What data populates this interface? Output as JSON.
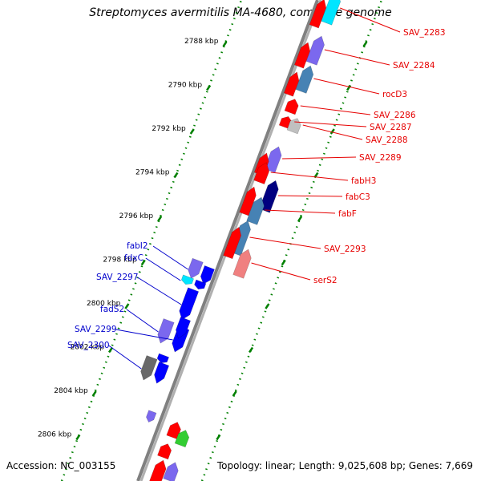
{
  "title": "Streptomyces avermitilis MA-4680, complete genome",
  "footer": {
    "accession": "Accession: NC_003155",
    "summary": "Topology: linear; Length: 9,025,608 bp; Genes: 7,669"
  },
  "colors": {
    "forward_label": "#e60000",
    "reverse_label": "#0000cc",
    "tick": "#008000",
    "backbone": "#808080"
  },
  "scale_ticks": [
    {
      "label": "2788 kbp",
      "kbp": 2788
    },
    {
      "label": "2790 kbp",
      "kbp": 2790
    },
    {
      "label": "2792 kbp",
      "kbp": 2792
    },
    {
      "label": "2794 kbp",
      "kbp": 2794
    },
    {
      "label": "2796 kbp",
      "kbp": 2796
    },
    {
      "label": "2798 kbp",
      "kbp": 2798
    },
    {
      "label": "2800 kbp",
      "kbp": 2800
    },
    {
      "label": "2802 kbp",
      "kbp": 2802
    },
    {
      "label": "2804 kbp",
      "kbp": 2804
    },
    {
      "label": "2806 kbp",
      "kbp": 2806
    }
  ],
  "forward_genes": [
    {
      "name": "SAV_2283",
      "color": "#00e5ff"
    },
    {
      "name": "SAV_2284",
      "color": "#7b68ee"
    },
    {
      "name": "rocD3",
      "color": "#4682b4"
    },
    {
      "name": "SAV_2286",
      "color": "#ff0000"
    },
    {
      "name": "SAV_2287",
      "color": "#ff0000"
    },
    {
      "name": "SAV_2288",
      "color": "#c0c0c0"
    },
    {
      "name": "SAV_2289",
      "color": "#7b68ee"
    },
    {
      "name": "fabH3",
      "color": "#ff0000"
    },
    {
      "name": "fabC3",
      "color": "#000080"
    },
    {
      "name": "fabF",
      "color": "#4682b4"
    },
    {
      "name": "SAV_2293",
      "color": "#4682b4"
    },
    {
      "name": "serS2",
      "color": "#f08080"
    }
  ],
  "reverse_genes": [
    {
      "name": "fabI2",
      "color": "#7b68ee"
    },
    {
      "name": "fdxC",
      "color": "#00e5ff"
    },
    {
      "name": "SAV_2297",
      "color": "#0000ff"
    },
    {
      "name": "fadS2",
      "color": "#7b68ee"
    },
    {
      "name": "SAV_2299",
      "color": "#0000ff"
    },
    {
      "name": "SAV_2300",
      "color": "#696969"
    }
  ]
}
